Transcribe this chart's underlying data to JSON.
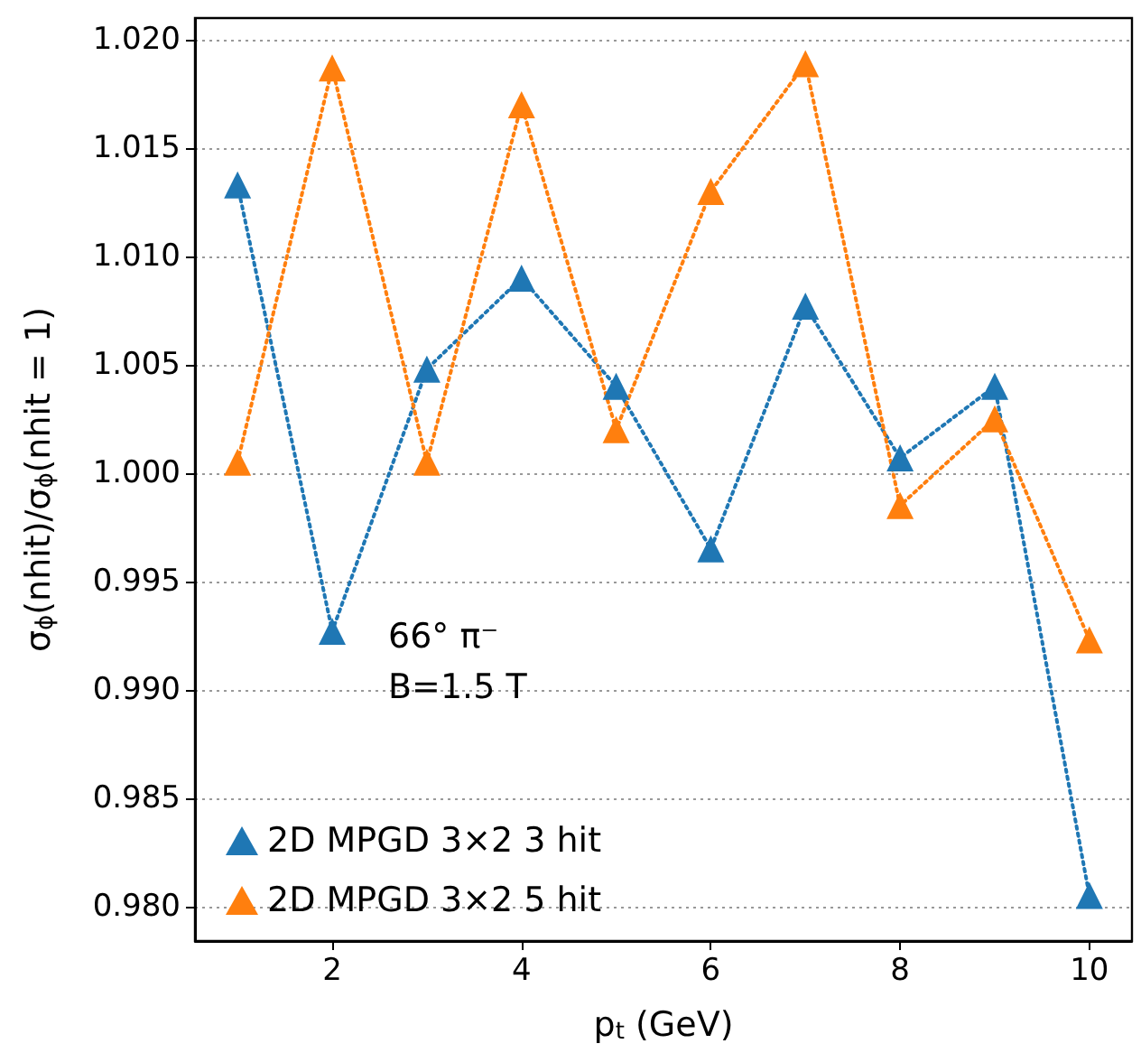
{
  "chart_data": {
    "type": "line",
    "xlabel": "p$_{t}$ (GeV)",
    "ylabel": "σ$_{ϕ}$(nhit)/σ$_{ϕ}$(nhit = 1)",
    "x": [
      1,
      2,
      3,
      4,
      5,
      6,
      7,
      8,
      9,
      10
    ],
    "series": [
      {
        "name": "2D MPGD 3×2 3 hit",
        "color": "#1f77b4",
        "values": [
          1.0133,
          0.9927,
          1.0048,
          1.009,
          1.004,
          0.9965,
          1.0077,
          1.0007,
          1.004,
          0.9805
        ]
      },
      {
        "name": "2D MPGD 3×2 5 hit",
        "color": "#ff7f0e",
        "values": [
          1.0005,
          1.0187,
          1.0005,
          1.017,
          1.002,
          1.013,
          1.0189,
          0.9985,
          1.0025,
          0.9923
        ]
      }
    ],
    "annotations": [
      "66° π⁻",
      "B=1.5 T"
    ],
    "xlim": [
      0.55,
      10.45
    ],
    "xticks": [
      2,
      4,
      6,
      8,
      10
    ],
    "ylim": [
      0.9784,
      1.021
    ],
    "yticks": [
      {
        "value": 0.98,
        "label": "0.980"
      },
      0.985,
      {
        "value": 0.99,
        "label": "0.990"
      },
      0.995,
      {
        "value": 1.0,
        "label": "1.000"
      },
      1.005,
      {
        "value": 1.01,
        "label": "1.010"
      },
      1.015,
      {
        "value": 1.02,
        "label": "1.020"
      }
    ],
    "grid": "y",
    "legend": "bottom left",
    "marker": "triangle",
    "line_style": "dotted"
  }
}
